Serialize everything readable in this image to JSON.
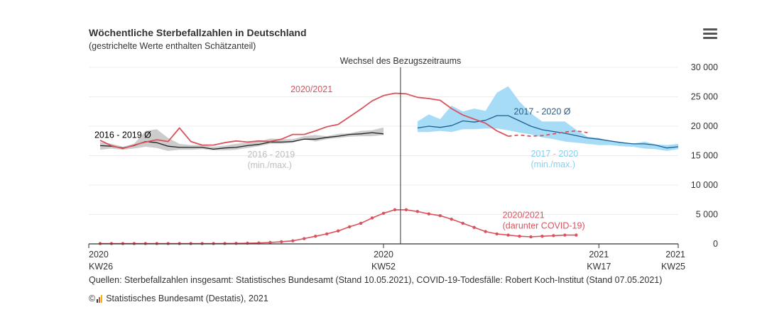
{
  "header": {
    "title": "Wöchentliche Sterbefallzahlen in Deutschland",
    "subtitle": "(gestrichelte Werte enthalten Schätzanteil)",
    "menu_icon": "hamburger-menu-icon"
  },
  "footer": {
    "source": "Quellen: Sterbefallzahlen insgesamt: Statistisches Bundesamt (Stand 10.05.2021), COVID-19-Todesfälle: Robert Koch-Institut (Stand 07.05.2021)",
    "copyright_symbol": "©",
    "copyright": "Statistisches Bundesamt (Destatis), 2021"
  },
  "chart_data": {
    "type": "line",
    "x_unit": "week index (0 = 2020 KW26)",
    "xlim": [
      0,
      52
    ],
    "ylim": [
      0,
      30000
    ],
    "y_ticks": [
      0,
      5000,
      10000,
      15000,
      20000,
      25000,
      30000
    ],
    "y_tick_labels": [
      "0",
      "5 000",
      "10 000",
      "15 000",
      "20 000",
      "25 000",
      "30 000"
    ],
    "x_ticks": [
      {
        "x": 0,
        "line1": "2020",
        "line2": "KW26"
      },
      {
        "x": 26,
        "line1": "2020",
        "line2": "KW52"
      },
      {
        "x": 45,
        "line1": "2021",
        "line2": "KW17"
      },
      {
        "x": 52,
        "line1": "2021",
        "line2": "KW25"
      }
    ],
    "reference_line": {
      "x": 27.5,
      "label": "Wechsel des Bezugszeitraums"
    },
    "annotations": [
      {
        "text": "2020/2021",
        "x": 21.5,
        "y": 25800,
        "anchor": "end",
        "color": "#d9525e"
      },
      {
        "text": "2016 - 2019 Ø",
        "x": 0.5,
        "y": 18000,
        "anchor": "start",
        "color": "#000000"
      },
      {
        "text": "2016 - 2019",
        "x": 14,
        "y": 14700,
        "anchor": "start",
        "color": "#bdbdbd"
      },
      {
        "text": "(min./max.)",
        "x": 14,
        "y": 12900,
        "anchor": "start",
        "color": "#bdbdbd"
      },
      {
        "text": "2017 - 2020 Ø",
        "x": 37.5,
        "y": 22000,
        "anchor": "start",
        "color": "#2a5d8a"
      },
      {
        "text": "2017 - 2020",
        "x": 39,
        "y": 14800,
        "anchor": "start",
        "color": "#89cff0"
      },
      {
        "text": "(min./max.)",
        "x": 39,
        "y": 13000,
        "anchor": "start",
        "color": "#89cff0"
      },
      {
        "text": "2020/2021",
        "x": 36.5,
        "y": 4400,
        "anchor": "start",
        "color": "#d9525e"
      },
      {
        "text": "(darunter COVID-19)",
        "x": 36.5,
        "y": 2600,
        "anchor": "start",
        "color": "#d9525e"
      }
    ],
    "series": [
      {
        "name": "2016 - 2019 (min./max.)",
        "kind": "band",
        "color": "#cccccc",
        "x": [
          1,
          2,
          3,
          4,
          5,
          6,
          7,
          8,
          9,
          10,
          11,
          12,
          13,
          14,
          15,
          16,
          17,
          18,
          19,
          20,
          21,
          22,
          23,
          24,
          25,
          26
        ],
        "min": [
          16000,
          16200,
          16000,
          16200,
          16500,
          16300,
          15800,
          16000,
          16000,
          16100,
          15900,
          15900,
          16000,
          16300,
          16600,
          17000,
          17000,
          17200,
          17800,
          17400,
          17800,
          18000,
          18200,
          18300,
          18300,
          18500
        ],
        "max": [
          17300,
          17000,
          16500,
          17000,
          19200,
          19500,
          18000,
          17000,
          16800,
          16800,
          16500,
          16700,
          17000,
          17200,
          17400,
          17900,
          17800,
          17800,
          18300,
          18500,
          18300,
          18700,
          18800,
          19200,
          19300,
          19800
        ]
      },
      {
        "name": "2016 - 2019 Ø",
        "kind": "line",
        "color": "#222222",
        "width": 1.3,
        "x": [
          1,
          2,
          3,
          4,
          5,
          6,
          7,
          8,
          9,
          10,
          11,
          12,
          13,
          14,
          15,
          16,
          17,
          18,
          19,
          20,
          21,
          22,
          23,
          24,
          25,
          26
        ],
        "y": [
          16700,
          16600,
          16300,
          16700,
          17400,
          17200,
          16600,
          16400,
          16400,
          16400,
          16100,
          16300,
          16400,
          16700,
          16900,
          17300,
          17300,
          17400,
          17800,
          17800,
          18100,
          18300,
          18600,
          18700,
          18900,
          18700
        ]
      },
      {
        "name": "2017 - 2020 (min./max.)",
        "kind": "band",
        "color": "#a7dcf7",
        "x": [
          29,
          30,
          31,
          32,
          33,
          34,
          35,
          36,
          37,
          38,
          39,
          40,
          41,
          42,
          43,
          44,
          45,
          46,
          47,
          48,
          49,
          50,
          51,
          52
        ],
        "min": [
          19000,
          19000,
          19200,
          19000,
          19500,
          19500,
          19600,
          19600,
          19300,
          18900,
          18600,
          18100,
          17800,
          17400,
          17200,
          17000,
          16800,
          16800,
          16600,
          16500,
          16200,
          16100,
          15800,
          16100
        ],
        "max": [
          20800,
          22000,
          21200,
          23500,
          22500,
          23000,
          22600,
          25700,
          26800,
          24200,
          22200,
          20800,
          20800,
          20800,
          19400,
          18200,
          18000,
          17400,
          17300,
          17000,
          17400,
          16900,
          16800,
          17000
        ]
      },
      {
        "name": "2017 - 2020 Ø",
        "kind": "line",
        "color": "#1d5f92",
        "width": 1.3,
        "x": [
          29,
          30,
          31,
          32,
          33,
          34,
          35,
          36,
          37,
          38,
          39,
          40,
          41,
          42,
          43,
          44,
          45,
          46,
          47,
          48,
          49,
          50,
          51,
          52
        ],
        "y": [
          19700,
          20000,
          19800,
          20100,
          20900,
          20700,
          21000,
          21800,
          21800,
          20900,
          20000,
          19400,
          19100,
          18800,
          18400,
          18000,
          17800,
          17500,
          17200,
          17000,
          17000,
          16800,
          16300,
          16500
        ]
      },
      {
        "name": "2020/2021",
        "kind": "line",
        "color": "#d9525e",
        "width": 1.8,
        "x": [
          1,
          2,
          3,
          4,
          5,
          6,
          7,
          8,
          9,
          10,
          11,
          12,
          13,
          14,
          15,
          16,
          17,
          18,
          19,
          20,
          21,
          22,
          23,
          24,
          25,
          26,
          27,
          28,
          29,
          30,
          31,
          32,
          33,
          34,
          35,
          36,
          37
        ],
        "y": [
          17600,
          16700,
          16200,
          16800,
          17300,
          17700,
          17400,
          19700,
          17400,
          16800,
          16800,
          17200,
          17500,
          17300,
          17500,
          17400,
          17800,
          18600,
          18600,
          19200,
          19900,
          20300,
          21600,
          22900,
          24300,
          25200,
          25600,
          25500,
          24900,
          24700,
          24400,
          23000,
          21900,
          21200,
          20500,
          19200,
          18300
        ]
      },
      {
        "name": "2020/2021 (Schätzanteil)",
        "kind": "line",
        "color": "#d9525e",
        "width": 1.8,
        "dash": "5,4",
        "x": [
          37,
          38,
          39,
          40,
          41,
          42,
          43,
          44
        ],
        "y": [
          18300,
          18500,
          18300,
          18400,
          18700,
          19000,
          19200,
          18900
        ]
      },
      {
        "name": "2020/2021 (darunter COVID-19)",
        "kind": "line",
        "color": "#d9525e",
        "width": 1.6,
        "markers": true,
        "x": [
          1,
          2,
          3,
          4,
          5,
          6,
          7,
          8,
          9,
          10,
          11,
          12,
          13,
          14,
          15,
          16,
          17,
          18,
          19,
          20,
          21,
          22,
          23,
          24,
          25,
          26,
          27,
          28,
          29,
          30,
          31,
          32,
          33,
          34,
          35,
          36,
          37,
          38,
          39,
          40,
          41,
          42,
          43
        ],
        "y": [
          60,
          60,
          60,
          60,
          60,
          60,
          60,
          60,
          60,
          60,
          60,
          70,
          90,
          120,
          160,
          240,
          370,
          520,
          900,
          1300,
          1700,
          2200,
          2900,
          3500,
          4400,
          5200,
          5800,
          5800,
          5500,
          5100,
          4800,
          4200,
          3500,
          2800,
          2100,
          1700,
          1500,
          1300,
          1200,
          1300,
          1400,
          1500,
          1500
        ]
      }
    ]
  }
}
